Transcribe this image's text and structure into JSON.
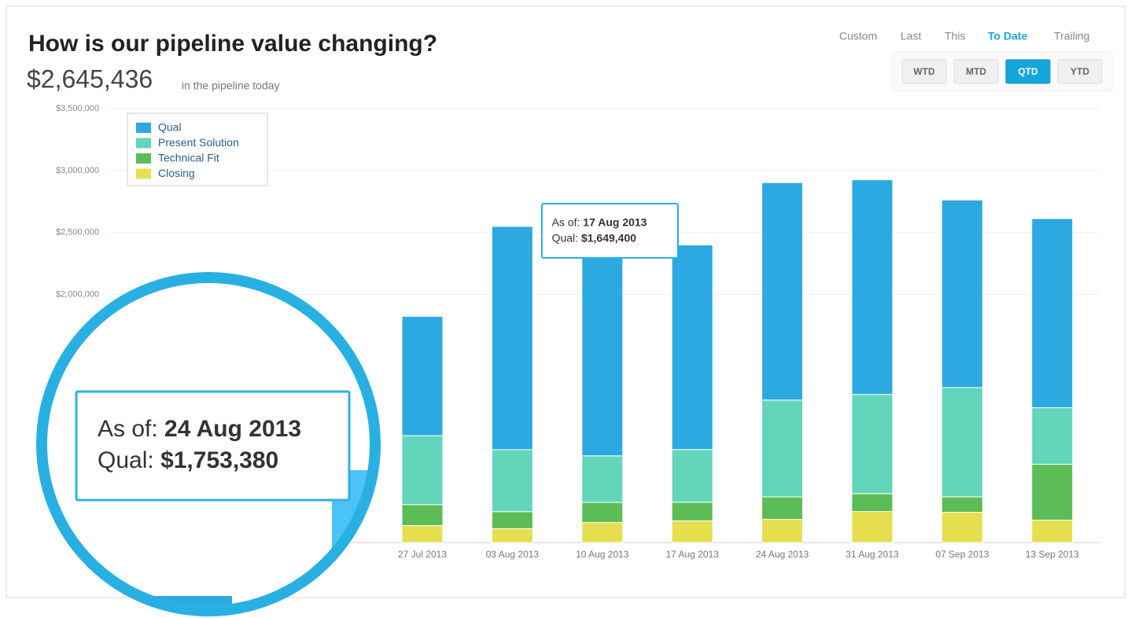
{
  "header": {
    "title": "How is our pipeline value changing?",
    "total": "$2,645,436",
    "total_caption": "in the pipeline today"
  },
  "period_tabs": [
    "Custom",
    "Last",
    "This",
    "To Date",
    "Trailing"
  ],
  "active_tab": 3,
  "period_buttons": [
    "WTD",
    "MTD",
    "QTD",
    "YTD"
  ],
  "active_button": 2,
  "chart_data": {
    "type": "stacked_bar",
    "categories": [
      "27 Jul 2013",
      "03 Aug 2013",
      "10 Aug 2013",
      "17 Aug 2013",
      "24 Aug 2013",
      "31 Aug 2013",
      "07 Sep 2013",
      "13 Sep 2013"
    ],
    "series": [
      {
        "name": "Closing",
        "color": "#e5df4f",
        "values": [
          137000,
          112000,
          162000,
          175000,
          187000,
          250000,
          244000,
          181000
        ]
      },
      {
        "name": "Technical Fit",
        "color": "#5cbd57",
        "values": [
          169000,
          137000,
          162000,
          150000,
          181000,
          144000,
          125000,
          450000
        ]
      },
      {
        "name": "Present Solution",
        "color": "#62d5bb",
        "values": [
          556000,
          500000,
          375000,
          425000,
          781000,
          800000,
          881000,
          456000
        ]
      },
      {
        "name": "Qual",
        "color": "#2ca9e1",
        "values": [
          962000,
          1800000,
          1625000,
          1649400,
          1753380,
          1731000,
          1512000,
          1525000
        ]
      }
    ],
    "ylim": [
      0,
      3500000
    ],
    "yticks": [
      {
        "value": 2000000,
        "label": "$2,000,000"
      },
      {
        "value": 2500000,
        "label": "$2,500,000"
      },
      {
        "value": 3000000,
        "label": "$3,000,000"
      },
      {
        "value": 3500000,
        "label": "$3,500,000"
      }
    ],
    "grid": true,
    "legend": "top-left"
  },
  "tooltip": {
    "as_of_label": "As of:",
    "date": "17 Aug 2013",
    "series_label": "Qual:",
    "value": "$1,649,400"
  },
  "magnified_tooltip": {
    "as_of_label": "As of:",
    "date": "24 Aug 2013",
    "series_label": "Qual:",
    "value": "$1,753,380"
  }
}
